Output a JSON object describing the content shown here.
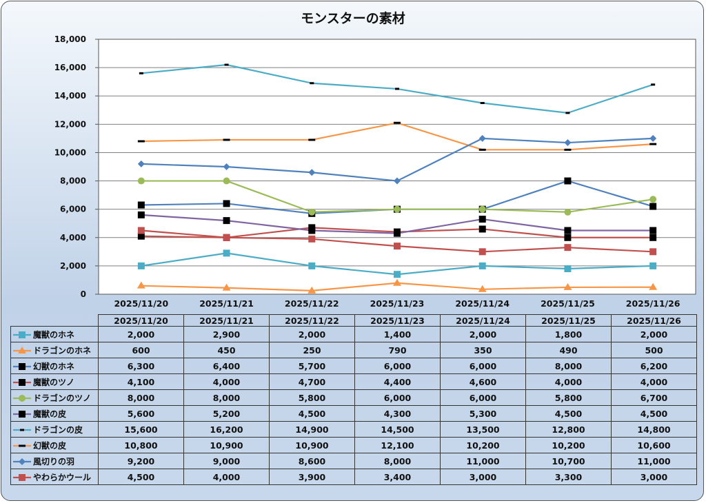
{
  "chart_data": {
    "type": "line",
    "title": "モンスターの素材",
    "xlabel": "",
    "ylabel": "",
    "ylim": [
      0,
      18000
    ],
    "yticks": [
      "0",
      "2,000",
      "4,000",
      "6,000",
      "8,000",
      "10,000",
      "12,000",
      "14,000",
      "16,000",
      "18,000"
    ],
    "ytick_values": [
      0,
      2000,
      4000,
      6000,
      8000,
      10000,
      12000,
      14000,
      16000,
      18000
    ],
    "grid": true,
    "legend": "data-table-below",
    "categories": [
      "2025/11/20",
      "2025/11/21",
      "2025/11/22",
      "2025/11/23",
      "2025/11/24",
      "2025/11/25",
      "2025/11/26"
    ],
    "series": [
      {
        "name": "魔獣のホネ",
        "color": "#4bacc6",
        "marker": "square",
        "marker_color": "#4bacc6",
        "values": [
          2000,
          2900,
          2000,
          1400,
          2000,
          1800,
          2000
        ],
        "labels": [
          "2,000",
          "2,900",
          "2,000",
          "1,400",
          "2,000",
          "1,800",
          "2,000"
        ]
      },
      {
        "name": "ドラゴンのホネ",
        "color": "#f79646",
        "marker": "triangle",
        "marker_color": "#f79646",
        "values": [
          600,
          450,
          250,
          790,
          350,
          490,
          500
        ],
        "labels": [
          "600",
          "450",
          "250",
          "790",
          "350",
          "490",
          "500"
        ]
      },
      {
        "name": "幻獣のホネ",
        "color": "#4f81bd",
        "marker": "square",
        "marker_color": "#000000",
        "values": [
          6300,
          6400,
          5700,
          6000,
          6000,
          8000,
          6200
        ],
        "labels": [
          "6,300",
          "6,400",
          "5,700",
          "6,000",
          "6,000",
          "8,000",
          "6,200"
        ]
      },
      {
        "name": "魔獣のツノ",
        "color": "#c0504d",
        "marker": "square",
        "marker_color": "#000000",
        "values": [
          4100,
          4000,
          4700,
          4400,
          4600,
          4000,
          4000
        ],
        "labels": [
          "4,100",
          "4,000",
          "4,700",
          "4,400",
          "4,600",
          "4,000",
          "4,000"
        ]
      },
      {
        "name": "ドラゴンのツノ",
        "color": "#9bbb59",
        "marker": "circle",
        "marker_color": "#9bbb59",
        "values": [
          8000,
          8000,
          5800,
          6000,
          6000,
          5800,
          6700
        ],
        "labels": [
          "8,000",
          "8,000",
          "5,800",
          "6,000",
          "6,000",
          "5,800",
          "6,700"
        ]
      },
      {
        "name": "魔獣の皮",
        "color": "#8064a2",
        "marker": "square",
        "marker_color": "#000000",
        "values": [
          5600,
          5200,
          4500,
          4300,
          5300,
          4500,
          4500
        ],
        "labels": [
          "5,600",
          "5,200",
          "4,500",
          "4,300",
          "5,300",
          "4,500",
          "4,500"
        ]
      },
      {
        "name": "ドラゴンの皮",
        "color": "#4bacc6",
        "marker": "dash",
        "marker_color": "#000000",
        "values": [
          15600,
          16200,
          14900,
          14500,
          13500,
          12800,
          14800
        ],
        "labels": [
          "15,600",
          "16,200",
          "14,900",
          "14,500",
          "13,500",
          "12,800",
          "14,800"
        ]
      },
      {
        "name": "幻獣の皮",
        "color": "#f79646",
        "marker": "wide-dash",
        "marker_color": "#000000",
        "values": [
          10800,
          10900,
          10900,
          12100,
          10200,
          10200,
          10600
        ],
        "labels": [
          "10,800",
          "10,900",
          "10,900",
          "12,100",
          "10,200",
          "10,200",
          "10,600"
        ]
      },
      {
        "name": "風切りの羽",
        "color": "#4f81bd",
        "marker": "diamond",
        "marker_color": "#4f81bd",
        "values": [
          9200,
          9000,
          8600,
          8000,
          11000,
          10700,
          11000
        ],
        "labels": [
          "9,200",
          "9,000",
          "8,600",
          "8,000",
          "11,000",
          "10,700",
          "11,000"
        ]
      },
      {
        "name": "やわらかウール",
        "color": "#c0504d",
        "marker": "square",
        "marker_color": "#c0504d",
        "values": [
          4500,
          4000,
          3900,
          3400,
          3000,
          3300,
          3000
        ],
        "labels": [
          "4,500",
          "4,000",
          "3,900",
          "3,400",
          "3,000",
          "3,300",
          "3,000"
        ]
      }
    ]
  }
}
